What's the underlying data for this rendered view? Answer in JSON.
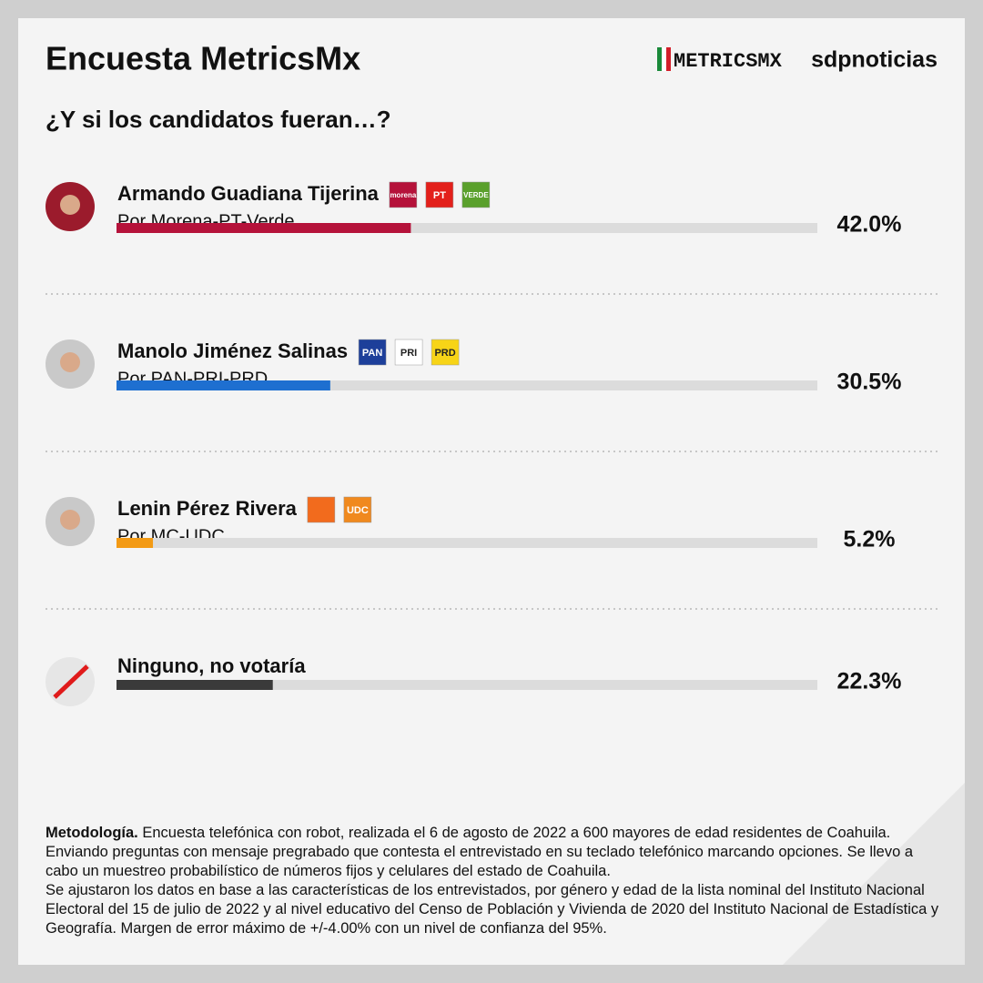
{
  "chart_data": {
    "type": "bar",
    "orientation": "horizontal",
    "title": "Encuesta MetricsMx",
    "subtitle": "¿Y si los candidatos fueran…?",
    "logos": [
      "METRICSMX",
      "sdpnoticias"
    ],
    "categories": [
      "Armando Guadiana Tijerina",
      "Manolo Jiménez Salinas",
      "Lenin Pérez Rivera",
      "Ninguno, no votaría"
    ],
    "descriptions": [
      "Por Morena-PT-Verde",
      "Por PAN-PRI-PRD",
      "Por MC-UDC",
      null
    ],
    "badges": [
      [
        {
          "label": "morena",
          "color": "#b5123a"
        },
        {
          "label": "PT",
          "color": "#e3201b"
        },
        {
          "label": "VERDE",
          "color": "#5aa02c"
        }
      ],
      [
        {
          "label": "PAN",
          "color": "#1d3f9a"
        },
        {
          "label": "PRI",
          "color": "#ffffff"
        },
        {
          "label": "PRD",
          "color": "#f7d417"
        }
      ],
      [
        {
          "label": null,
          "color": "#f26b1d"
        },
        {
          "label": "UDC",
          "color": "#f0891e"
        }
      ],
      []
    ],
    "values": [
      42.0,
      30.5,
      5.2,
      22.3
    ],
    "value_labels": [
      "42.0%",
      "30.5%",
      "5.2%",
      "22.3%"
    ],
    "colors": [
      "#b5123a",
      "#1e6fd0",
      "#f39a14",
      "#3a3a3a"
    ],
    "xlim": [
      0,
      100
    ],
    "methodology_label": "Metodología.",
    "methodology": [
      "Encuesta telefónica con robot, realizada el 6 de agosto de 2022 a 600 mayores de edad residentes de Coahuila. Enviando preguntas con mensaje pregrabado que contesta el entrevistado en su teclado telefónico marcando opciones. Se llevo a cabo un muestreo probabilístico de números fijos y celulares del estado de Coahuila.",
      "Se ajustaron los datos en base a las características de los entrevistados, por género y edad de la lista nominal del Instituto Nacional Electoral del 15 de julio de 2022 y al nivel educativo del Censo de Población y Vivienda de 2020 del Instituto Nacional de Estadística y Geografía. Margen de error máximo de +/-4.00% con un nivel de confianza del 95%."
    ]
  }
}
